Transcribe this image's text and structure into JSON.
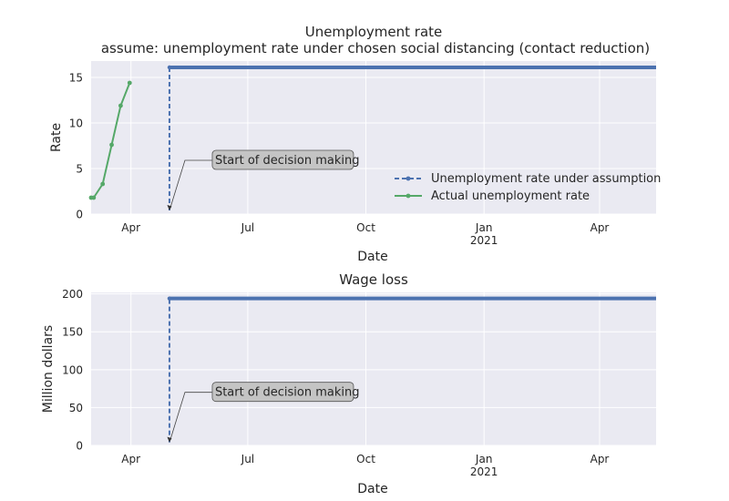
{
  "chart_data": [
    {
      "type": "line",
      "title": "Unemployment rate",
      "subtitle": "assume: unemployment rate under chosen social distancing (contact reduction)",
      "xlabel": "Date",
      "ylabel": "Rate",
      "xlim": [
        "2020-03-01",
        "2021-05-15"
      ],
      "ylim": [
        0,
        16.8
      ],
      "grid": true,
      "legend_position": "lower-right",
      "x_ticks": [
        {
          "date": "2020-04-01",
          "label": "Apr",
          "sub": ""
        },
        {
          "date": "2020-07-01",
          "label": "Jul",
          "sub": ""
        },
        {
          "date": "2020-10-01",
          "label": "Oct",
          "sub": ""
        },
        {
          "date": "2021-01-01",
          "label": "Jan",
          "sub": "2021"
        },
        {
          "date": "2021-04-01",
          "label": "Apr",
          "sub": ""
        }
      ],
      "y_ticks": [
        0,
        5,
        10,
        15
      ],
      "series": [
        {
          "name": "Unemployment rate under assumption",
          "color": "#4c72b0",
          "points": [
            {
              "x": "2020-05-01",
              "y": 0.4
            },
            {
              "x": "2020-05-01",
              "y": 16.1
            },
            {
              "x": "2021-05-15",
              "y": 16.1
            }
          ]
        },
        {
          "name": "Actual unemployment rate",
          "color": "#55a868",
          "points": [
            {
              "x": "2020-03-01",
              "y": 1.8
            },
            {
              "x": "2020-03-03",
              "y": 1.8
            },
            {
              "x": "2020-03-10",
              "y": 3.3
            },
            {
              "x": "2020-03-17",
              "y": 7.6
            },
            {
              "x": "2020-03-24",
              "y": 11.9
            },
            {
              "x": "2020-03-31",
              "y": 14.4
            }
          ]
        }
      ],
      "annotations": [
        {
          "text": "Start of decision making",
          "x": "2020-05-01",
          "y": 0.4
        }
      ]
    },
    {
      "type": "line",
      "title": "Wage loss",
      "subtitle": "",
      "xlabel": "Date",
      "ylabel": "Million dollars",
      "xlim": [
        "2020-03-01",
        "2021-05-15"
      ],
      "ylim": [
        0,
        202
      ],
      "grid": true,
      "x_ticks": [
        {
          "date": "2020-04-01",
          "label": "Apr",
          "sub": ""
        },
        {
          "date": "2020-07-01",
          "label": "Jul",
          "sub": ""
        },
        {
          "date": "2020-10-01",
          "label": "Oct",
          "sub": ""
        },
        {
          "date": "2021-01-01",
          "label": "Jan",
          "sub": "2021"
        },
        {
          "date": "2021-04-01",
          "label": "Apr",
          "sub": ""
        }
      ],
      "y_ticks": [
        0,
        50,
        100,
        150,
        200
      ],
      "series": [
        {
          "color": "#4c72b0",
          "points": [
            {
              "x": "2020-05-01",
              "y": 4
            },
            {
              "x": "2020-05-01",
              "y": 194
            },
            {
              "x": "2021-05-15",
              "y": 194
            }
          ]
        }
      ],
      "annotations": [
        {
          "text": "Start of decision making",
          "x": "2020-05-01",
          "y": 4
        }
      ]
    }
  ]
}
